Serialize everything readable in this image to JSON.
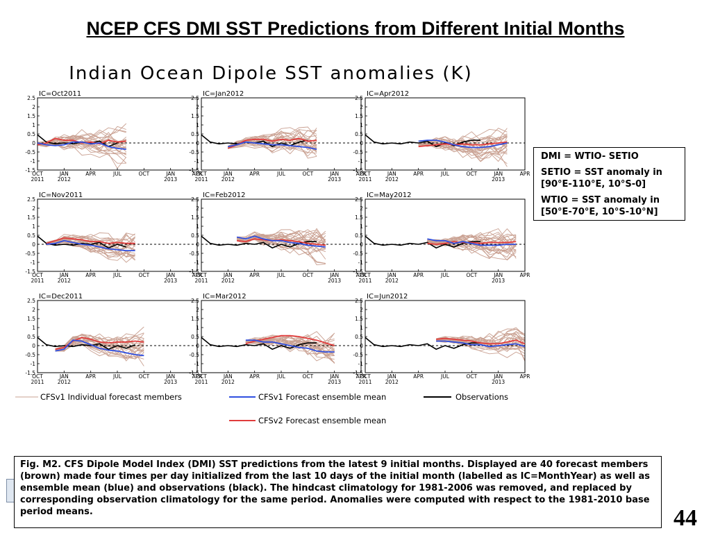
{
  "slide": {
    "title": "NCEP CFS DMI SST Predictions from Different Initial Months",
    "page_number": "44"
  },
  "info_box": {
    "line1": "DMI = WTIO- SETIO",
    "line2": "SETIO = SST anomaly in [90°E-110°E, 10°S-0]",
    "line3": "WTIO = SST anomaly in [50°E-70°E, 10°S-10°N]"
  },
  "caption": "Fig. M2. CFS Dipole Model Index (DMI) SST predictions from the latest 9 initial months. Displayed are 40 forecast members (brown) made four times per day initialized from the last 10 days of the initial month (labelled as IC=MonthYear) as well as ensemble mean (blue) and observations (black). The hindcast climatology for 1981-2006 was removed, and replaced by corresponding observation climatology for the same period. Anomalies were computed with respect to the 1981-2010 base period means.",
  "colors": {
    "members": "#c9a091",
    "v1_mean": "#2f4fe0",
    "v2_mean": "#e03c3c",
    "observations": "#000000",
    "zero_line": "#000000"
  },
  "chart_data": {
    "type": "line",
    "title": "Indian Ocean Dipole SST anomalies (K)",
    "xlabel": "",
    "ylabel": "",
    "ylim": [
      -1.5,
      2.5
    ],
    "yticks": [
      "-1.5",
      "-1",
      "-0.5",
      "0",
      "0.5",
      "1",
      "1.5",
      "2",
      "2.5"
    ],
    "x_months": [
      "2011-10",
      "2011-11",
      "2011-12",
      "2012-01",
      "2012-02",
      "2012-03",
      "2012-04",
      "2012-05",
      "2012-06",
      "2012-07",
      "2012-08",
      "2012-09",
      "2012-10",
      "2012-11",
      "2012-12",
      "2013-01",
      "2013-02",
      "2013-03",
      "2013-04"
    ],
    "x_tick_labels": [
      {
        "top": "OCT",
        "bottom": "2011"
      },
      {
        "top": "JAN",
        "bottom": "2012"
      },
      {
        "top": "APR",
        "bottom": ""
      },
      {
        "top": "JUL",
        "bottom": ""
      },
      {
        "top": "OCT",
        "bottom": ""
      },
      {
        "top": "JAN",
        "bottom": "2013"
      },
      {
        "top": "APR",
        "bottom": ""
      }
    ],
    "observations": [
      0.45,
      0.05,
      -0.05,
      0.0,
      -0.05,
      0.05,
      0.0,
      0.1,
      -0.2,
      0.0,
      -0.15,
      0.05,
      0.15,
      0.15
    ],
    "legend": [
      {
        "label": "CFSv1 Individual forecast members",
        "color": "#c9a091"
      },
      {
        "label": "CFSv1 Forecast ensemble mean",
        "color": "#2f4fe0"
      },
      {
        "label": "Observations",
        "color": "#000000"
      },
      {
        "label": "CFSv2 Forecast ensemble mean",
        "color": "#e03c3c"
      }
    ],
    "panels": [
      {
        "label": "IC=Oct2011",
        "start": 0,
        "obs_end": 9,
        "v1_mean": [
          0.0,
          -0.1,
          -0.15,
          -0.1,
          0.05,
          0.05,
          -0.05,
          0.0,
          -0.2,
          -0.3,
          -0.35
        ],
        "v2_mean": [
          -0.1,
          0.0,
          0.25,
          0.15,
          0.15,
          0.0,
          0.05,
          -0.05,
          0.15,
          0.05,
          0.1
        ]
      },
      {
        "label": "IC=Jan2012",
        "start": 3,
        "obs_end": 12,
        "v1_mean": [
          -0.2,
          -0.1,
          0.05,
          0.0,
          -0.05,
          -0.1,
          -0.1,
          -0.15,
          -0.2,
          -0.25,
          -0.35
        ],
        "v2_mean": [
          -0.3,
          -0.1,
          0.15,
          0.2,
          0.2,
          0.1,
          0.2,
          0.15,
          0.25,
          0.1,
          0.15
        ]
      },
      {
        "label": "IC=Apr2012",
        "start": 6,
        "obs_end": 15,
        "v1_mean": [
          0.1,
          0.15,
          0.15,
          0.05,
          -0.1,
          -0.2,
          -0.25,
          -0.25,
          -0.2,
          -0.1,
          0.0
        ],
        "v2_mean": [
          -0.2,
          -0.15,
          -0.1,
          -0.05,
          -0.1,
          -0.05,
          -0.1,
          -0.1,
          -0.05,
          0.0,
          0.05
        ]
      },
      {
        "label": "IC=Nov2011",
        "start": 1,
        "obs_end": 10,
        "v1_mean": [
          0.0,
          0.05,
          0.2,
          0.1,
          0.0,
          -0.05,
          -0.15,
          -0.25,
          -0.3,
          -0.35,
          -0.35
        ],
        "v2_mean": [
          0.05,
          0.2,
          0.35,
          0.3,
          0.25,
          0.15,
          0.15,
          0.05,
          0.1,
          0.05,
          0.05
        ]
      },
      {
        "label": "IC=Feb2012",
        "start": 4,
        "obs_end": 13,
        "v1_mean": [
          0.4,
          0.3,
          0.45,
          0.3,
          0.2,
          0.2,
          0.1,
          0.05,
          -0.05,
          -0.1,
          -0.15
        ],
        "v2_mean": [
          0.2,
          0.15,
          0.3,
          0.25,
          0.2,
          0.25,
          0.2,
          0.15,
          0.05,
          0.0,
          -0.05
        ]
      },
      {
        "label": "IC=May2012",
        "start": 7,
        "obs_end": 16,
        "v1_mean": [
          0.3,
          0.2,
          0.2,
          0.05,
          0.15,
          0.05,
          -0.05,
          -0.05,
          -0.05,
          0.0,
          0.0
        ],
        "v2_mean": [
          0.05,
          0.0,
          0.05,
          0.15,
          0.1,
          0.1,
          0.05,
          0.1,
          0.1,
          0.1,
          0.15
        ]
      },
      {
        "label": "IC=Dec2011",
        "start": 2,
        "obs_end": 11,
        "v1_mean": [
          -0.3,
          -0.2,
          0.3,
          0.25,
          0.05,
          -0.15,
          -0.25,
          -0.3,
          -0.4,
          -0.5,
          -0.55
        ],
        "v2_mean": [
          -0.2,
          -0.1,
          0.25,
          0.45,
          0.35,
          0.2,
          0.15,
          0.2,
          0.2,
          0.25,
          0.2
        ]
      },
      {
        "label": "IC=Mar2012",
        "start": 5,
        "obs_end": 14,
        "v1_mean": [
          0.3,
          0.3,
          0.2,
          0.2,
          0.1,
          0.0,
          -0.1,
          -0.15,
          -0.3,
          -0.35,
          -0.35
        ],
        "v2_mean": [
          0.1,
          0.25,
          0.35,
          0.45,
          0.55,
          0.55,
          0.5,
          0.4,
          0.3,
          0.15,
          0.0
        ]
      },
      {
        "label": "IC=Jun2012",
        "start": 8,
        "obs_end": 17,
        "v1_mean": [
          0.25,
          0.25,
          0.2,
          0.15,
          0.05,
          0.05,
          -0.05,
          0.0,
          0.05,
          0.1,
          -0.05
        ],
        "v2_mean": [
          0.35,
          0.4,
          0.35,
          0.3,
          0.25,
          0.15,
          0.1,
          0.1,
          0.2,
          0.3,
          0.1
        ]
      }
    ]
  }
}
